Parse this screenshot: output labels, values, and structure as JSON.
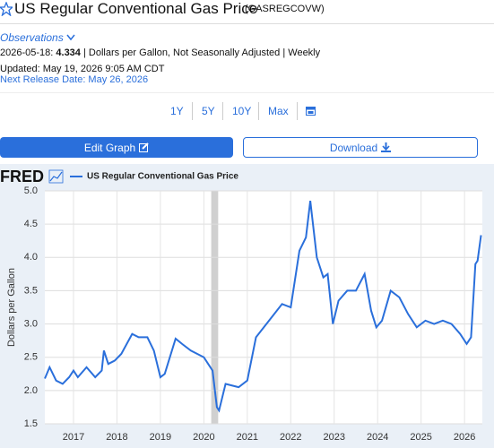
{
  "header": {
    "title": "US Regular Conventional Gas Price",
    "series_id": "(GASREGCOVW)"
  },
  "observations": {
    "link": "Observations",
    "date": "2026-05-18:",
    "value": "4.334",
    "details": "| Dollars per Gallon, Not Seasonally Adjusted | Weekly",
    "updated": "Updated: May 19, 2026 9:05 AM CDT",
    "next_release": "Next Release Date: May 26, 2026"
  },
  "ranges": [
    "1Y",
    "5Y",
    "10Y",
    "Max"
  ],
  "buttons": {
    "edit": "Edit Graph",
    "download": "Download"
  },
  "logo": "FRED",
  "chart_data": {
    "type": "line",
    "ylabel": "Dollars per Gallon",
    "grid": true,
    "xlim": [
      2016.34,
      2026.41
    ],
    "xticks": [
      2017,
      2018,
      2019,
      2020,
      2021,
      2022,
      2023,
      2024,
      2025,
      2026
    ],
    "ylim": [
      1.5,
      5.0
    ],
    "yticks": [
      {
        "value": 1.5,
        "label": "1.5"
      },
      {
        "value": 2.0,
        "label": "2.0"
      },
      2.5,
      {
        "value": 3.0,
        "label": "3.0"
      },
      3.5,
      {
        "value": 4.0,
        "label": "4.0"
      },
      4.5,
      {
        "value": 5.0,
        "label": "5.0"
      }
    ],
    "shaded_range": [
      2020.17,
      2020.33
    ],
    "x": [
      2016.34,
      2016.45,
      2016.6,
      2016.75,
      2016.9,
      2017.0,
      2017.1,
      2017.3,
      2017.5,
      2017.65,
      2017.7,
      2017.8,
      2017.95,
      2018.1,
      2018.35,
      2018.5,
      2018.7,
      2018.85,
      2019.0,
      2019.1,
      2019.35,
      2019.5,
      2019.7,
      2019.85,
      2020.0,
      2020.1,
      2020.2,
      2020.3,
      2020.35,
      2020.5,
      2020.8,
      2021.0,
      2021.2,
      2021.5,
      2021.8,
      2022.0,
      2022.2,
      2022.35,
      2022.45,
      2022.6,
      2022.75,
      2022.85,
      2022.97,
      2023.1,
      2023.3,
      2023.5,
      2023.7,
      2023.85,
      2023.97,
      2024.1,
      2024.3,
      2024.5,
      2024.7,
      2024.9,
      2025.1,
      2025.3,
      2025.5,
      2025.7,
      2025.9,
      2026.05,
      2026.15,
      2026.25,
      2026.3,
      2026.38
    ],
    "series": [
      {
        "name": "US Regular Conventional Gas Price",
        "color": "#2a6fdb",
        "values": [
          2.18,
          2.35,
          2.15,
          2.1,
          2.2,
          2.3,
          2.2,
          2.35,
          2.2,
          2.3,
          2.6,
          2.4,
          2.45,
          2.55,
          2.85,
          2.8,
          2.8,
          2.6,
          2.2,
          2.25,
          2.78,
          2.7,
          2.6,
          2.55,
          2.5,
          2.4,
          2.3,
          1.75,
          1.7,
          2.1,
          2.05,
          2.15,
          2.8,
          3.05,
          3.3,
          3.25,
          4.1,
          4.3,
          4.85,
          4.0,
          3.7,
          3.75,
          3.0,
          3.35,
          3.5,
          3.5,
          3.75,
          3.2,
          2.95,
          3.05,
          3.5,
          3.4,
          3.15,
          2.95,
          3.05,
          3.0,
          3.05,
          3.0,
          2.85,
          2.7,
          2.8,
          3.9,
          3.95,
          4.334
        ]
      }
    ]
  }
}
